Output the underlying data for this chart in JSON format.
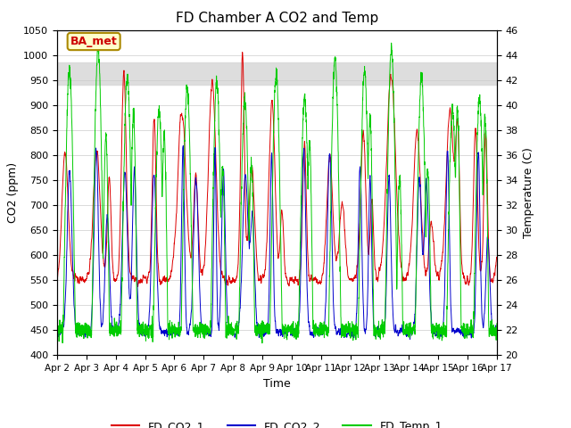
{
  "title": "FD Chamber A CO2 and Temp",
  "xlabel": "Time",
  "ylabel_left": "CO2 (ppm)",
  "ylabel_right": "Temperature (C)",
  "ylim_left": [
    400,
    1050
  ],
  "ylim_right": [
    20,
    46
  ],
  "yticks_left": [
    400,
    450,
    500,
    550,
    600,
    650,
    700,
    750,
    800,
    850,
    900,
    950,
    1000,
    1050
  ],
  "yticks_right": [
    20,
    22,
    24,
    26,
    28,
    30,
    32,
    34,
    36,
    38,
    40,
    42,
    44,
    46
  ],
  "xtick_labels": [
    "Apr 2",
    "Apr 3",
    "Apr 4",
    "Apr 5",
    "Apr 6",
    "Apr 7",
    "Apr 8",
    "Apr 9",
    "Apr 10",
    "Apr 11",
    "Apr 12",
    "Apr 13",
    "Apr 14",
    "Apr 15",
    "Apr 16",
    "Apr 17"
  ],
  "color_co2_1": "#dd0000",
  "color_co2_2": "#0000cc",
  "color_temp": "#00cc00",
  "shaded_band_low": 940,
  "shaded_band_high": 985,
  "annotation_text": "BA_met",
  "annotation_color": "#cc0000",
  "annotation_bg": "#ffffcc",
  "annotation_border": "#aa8800",
  "background_color": "#ffffff",
  "grid_color": "#cccccc",
  "legend_entries": [
    "FD_CO2_1",
    "FD_CO2_2",
    "FD_Temp_1"
  ]
}
